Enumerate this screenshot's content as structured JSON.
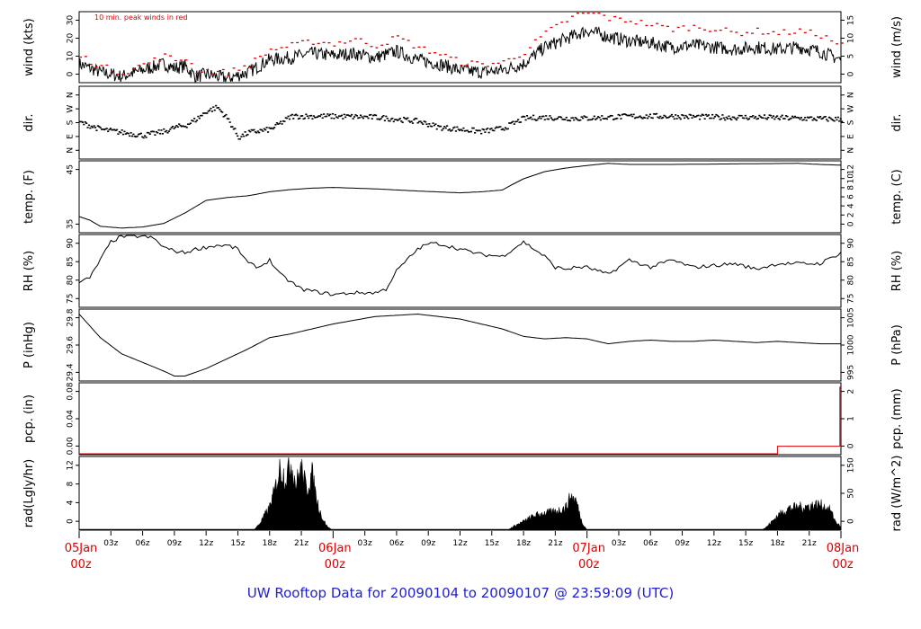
{
  "title": "UW Rooftop Data for 20090104  to  20090107 @ 23:59:09  (UTC)",
  "colors": {
    "trace": "#000000",
    "peak": "#dd0000",
    "title": "#2020d0",
    "daylabel": "#dd0000"
  },
  "chart_data": [
    {
      "type": "line",
      "id": "wind",
      "left_label": "wind (kts)",
      "right_label": "wind (m/s)",
      "note": "10 min. peak winds in red",
      "left_ticks": [
        "0",
        "10",
        "20",
        "30"
      ],
      "right_ticks": [
        "0",
        "5",
        "10",
        "15"
      ],
      "ylim": [
        0,
        34
      ],
      "x_hours": [
        0,
        2,
        4,
        6,
        8,
        9,
        10,
        11,
        12,
        14,
        16,
        18,
        20,
        22,
        24,
        26,
        28,
        30,
        32,
        34,
        36,
        38,
        40,
        42,
        44,
        46,
        48,
        50,
        52,
        54,
        56,
        58,
        60,
        62,
        64,
        66,
        68,
        70,
        72
      ],
      "values": [
        9,
        5,
        3,
        6,
        9,
        7,
        8,
        3,
        4,
        2,
        5,
        11,
        12,
        14,
        13,
        14,
        12,
        15,
        11,
        9,
        6,
        5,
        6,
        9,
        17,
        21,
        25,
        22,
        20,
        19,
        17,
        18,
        17,
        16,
        17,
        16,
        17,
        15,
        11
      ],
      "peak_values": [
        13,
        8,
        5,
        9,
        13,
        11,
        12,
        6,
        6,
        5,
        9,
        16,
        18,
        20,
        19,
        21,
        18,
        22,
        17,
        14,
        10,
        9,
        10,
        15,
        24,
        30,
        36,
        31,
        30,
        28,
        26,
        27,
        26,
        24,
        25,
        24,
        25,
        23,
        18
      ]
    },
    {
      "type": "scatter",
      "id": "dir",
      "left_label": "dir.",
      "right_label": "dir.",
      "left_ticks": [
        "N",
        "E",
        "S",
        "W",
        "N"
      ],
      "right_ticks": [
        "N",
        "E",
        "S",
        "W",
        "N"
      ],
      "ylim": [
        0,
        360
      ],
      "x_hours": [
        0,
        2,
        4,
        6,
        8,
        9,
        10,
        11,
        12,
        13,
        14,
        15,
        16,
        18,
        20,
        24,
        28,
        32,
        34,
        36,
        38,
        40,
        42,
        44,
        46,
        48,
        52,
        56,
        60,
        64,
        68,
        72
      ],
      "values": [
        185,
        150,
        135,
        120,
        140,
        160,
        170,
        200,
        240,
        260,
        200,
        110,
        135,
        150,
        215,
        215,
        210,
        190,
        160,
        150,
        140,
        155,
        205,
        210,
        205,
        205,
        215,
        215,
        210,
        210,
        205,
        200
      ]
    },
    {
      "type": "line",
      "id": "temp",
      "left_label": "temp. (F)",
      "right_label": "temp. (C)",
      "left_ticks": [
        "35",
        "45"
      ],
      "right_ticks": [
        "0",
        "2",
        "4",
        "6",
        "8",
        "10",
        "12"
      ],
      "ylim": [
        32,
        52
      ],
      "x_hours": [
        0,
        1,
        2,
        4,
        6,
        8,
        10,
        12,
        14,
        16,
        18,
        20,
        22,
        24,
        28,
        32,
        36,
        38,
        40,
        41,
        42,
        44,
        46,
        48,
        50,
        52,
        56,
        60,
        64,
        68,
        70,
        72
      ],
      "values": [
        36.5,
        35.5,
        33.8,
        33.3,
        33.6,
        34.6,
        37.5,
        41.0,
        41.8,
        42.3,
        43.4,
        44.0,
        44.4,
        44.6,
        44.2,
        43.6,
        43.1,
        43.4,
        43.9,
        45.5,
        47.0,
        49.0,
        50.0,
        50.7,
        51.3,
        51.0,
        51.0,
        51.1,
        51.2,
        51.3,
        51.0,
        50.8
      ]
    },
    {
      "type": "line",
      "id": "rh",
      "left_label": "RH (%)",
      "right_label": "RH (%)",
      "left_ticks": [
        "75",
        "80",
        "85",
        "90"
      ],
      "right_ticks": [
        "75",
        "80",
        "85",
        "90"
      ],
      "ylim": [
        73,
        93
      ],
      "x_hours": [
        0,
        1,
        2,
        3,
        4,
        6,
        7,
        8,
        9,
        10,
        11,
        12,
        13,
        14,
        15,
        16,
        17,
        18,
        19,
        20,
        21,
        22,
        24,
        26,
        28,
        29,
        30,
        31,
        32,
        33,
        34,
        36,
        38,
        40,
        42,
        44,
        45,
        46,
        47,
        48,
        50,
        52,
        54,
        56,
        58,
        60,
        62,
        64,
        66,
        68,
        70,
        72
      ],
      "values": [
        80,
        81,
        86,
        91,
        92.5,
        92.5,
        92,
        89.5,
        88.5,
        88,
        89,
        89.5,
        90,
        90,
        89,
        85,
        84,
        86,
        82,
        80,
        78,
        77.5,
        76.5,
        77,
        77,
        78,
        83,
        86,
        89,
        90.5,
        90.5,
        89,
        87.5,
        87,
        91,
        87,
        84,
        83.5,
        84,
        84,
        82,
        86,
        84,
        86,
        84,
        84.5,
        85,
        83.5,
        85,
        85,
        85,
        88
      ]
    },
    {
      "type": "line",
      "id": "pressure",
      "left_label": "P (inHg)",
      "right_label": "P (hPa)",
      "left_ticks": [
        "29.4",
        "29.6",
        "29.8"
      ],
      "right_ticks": [
        "995",
        "1000",
        "1005"
      ],
      "ylim": [
        29.3,
        29.88
      ],
      "x_hours": [
        0,
        2,
        4,
        6,
        8,
        9,
        10,
        12,
        14,
        16,
        18,
        20,
        22,
        24,
        26,
        28,
        30,
        32,
        34,
        36,
        38,
        40,
        42,
        44,
        46,
        48,
        50,
        52,
        54,
        56,
        58,
        60,
        62,
        64,
        66,
        68,
        70,
        72
      ],
      "values": [
        29.84,
        29.65,
        29.52,
        29.45,
        29.38,
        29.34,
        29.34,
        29.4,
        29.48,
        29.56,
        29.65,
        29.68,
        29.72,
        29.76,
        29.79,
        29.82,
        29.83,
        29.84,
        29.82,
        29.8,
        29.76,
        29.72,
        29.66,
        29.64,
        29.65,
        29.64,
        29.6,
        29.62,
        29.63,
        29.62,
        29.62,
        29.63,
        29.62,
        29.61,
        29.62,
        29.61,
        29.6,
        29.6
      ]
    },
    {
      "type": "line",
      "id": "precip",
      "left_label": "pcp. (in)",
      "right_label": "pcp. (mm)",
      "left_ticks": [
        "0.00",
        "0.04",
        "0.08"
      ],
      "right_ticks": [
        "0",
        "1",
        "2"
      ],
      "ylim": [
        0,
        0.085
      ],
      "x_hours": [
        0,
        66,
        66,
        71.9,
        71.9,
        72
      ],
      "values": [
        0,
        0,
        0.01,
        0.01,
        0.08,
        0.08
      ]
    },
    {
      "type": "area",
      "id": "radiation",
      "left_label": "rad(Lgly/hr)",
      "right_label": "rad (W/m^2)",
      "left_ticks": [
        "0",
        "4",
        "8",
        "12"
      ],
      "right_ticks": [
        "0",
        "50",
        "150"
      ],
      "ylim": [
        0,
        13
      ],
      "x_hours": [
        0,
        16.5,
        17,
        18,
        18.5,
        19,
        19.5,
        20,
        20.5,
        21,
        21.5,
        22,
        22.5,
        23,
        23.5,
        24,
        40.5,
        41,
        42,
        43,
        44,
        45,
        46,
        46.5,
        47,
        47.5,
        48,
        64.5,
        65,
        66,
        67,
        68,
        69,
        70,
        71,
        71.5,
        72
      ],
      "values": [
        0,
        0,
        1,
        4,
        7,
        11,
        9,
        12,
        8,
        11,
        7,
        10,
        5,
        2,
        0.5,
        0,
        0,
        0.6,
        1.5,
        2.5,
        3,
        3.2,
        4,
        6,
        5,
        1.5,
        0,
        0,
        0.6,
        2.5,
        3.8,
        4,
        4.2,
        4.5,
        3.5,
        1.5,
        0.5
      ]
    }
  ],
  "x_axis": {
    "hour_ticks": [
      "03z",
      "06z",
      "09z",
      "12z",
      "15z",
      "18z",
      "21z",
      "03z",
      "06z",
      "09z",
      "12z",
      "15z",
      "18z",
      "21z",
      "03z",
      "06z",
      "09z",
      "12z",
      "15z",
      "18z",
      "21z"
    ],
    "day_labels": [
      {
        "date": "05Jan",
        "time": "00z"
      },
      {
        "date": "06Jan",
        "time": "00z"
      },
      {
        "date": "07Jan",
        "time": "00z"
      },
      {
        "date": "08Jan",
        "time": "00z"
      }
    ]
  }
}
